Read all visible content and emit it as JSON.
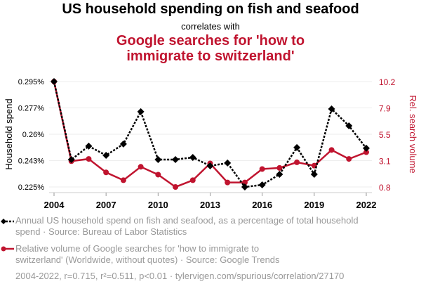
{
  "header": {
    "title": "US household spending on fish and seafood",
    "subtitle": "correlates with",
    "title2_line1": "Google searches for 'how to",
    "title2_line2": "immigrate to switzerland'"
  },
  "colors": {
    "series1": "#000000",
    "series2": "#c0142f",
    "grid": "#eeeeee",
    "legend_text": "#999999"
  },
  "chart_data": {
    "type": "line",
    "title": "US household spending on fish and seafood correlates with Google searches for 'how to immigrate to switzerland'",
    "x": [
      2004,
      2005,
      2006,
      2007,
      2008,
      2009,
      2010,
      2011,
      2012,
      2013,
      2014,
      2015,
      2016,
      2017,
      2018,
      2019,
      2020,
      2021,
      2022
    ],
    "xticks": [
      "2004",
      "2007",
      "2010",
      "2013",
      "2016",
      "2019",
      "2022"
    ],
    "xtick_values": [
      2004,
      2007,
      2010,
      2013,
      2016,
      2019,
      2022
    ],
    "ylabel": "Household spend",
    "yticks": [
      "0.225%",
      "0.243%",
      "0.26%",
      "0.277%",
      "0.295%"
    ],
    "ylim": [
      0.225,
      0.295
    ],
    "y2label": "Rel. search volume",
    "y2ticks": [
      "0.8",
      "3.1",
      "5.5",
      "7.9",
      "10.2"
    ],
    "y2lim": [
      0.8,
      10.2
    ],
    "grid": true,
    "legend_position": "bottom",
    "series": [
      {
        "name": "Annual US household spend on fish and seafood, as a percentage of total household spend · Source: Bureau of Labor Statistics",
        "axis": "left",
        "style": "dotted-diamond",
        "values": [
          0.295,
          0.2432,
          0.2521,
          0.246,
          0.2535,
          0.275,
          0.2432,
          0.2432,
          0.2446,
          0.239,
          0.2409,
          0.225,
          0.2264,
          0.2334,
          0.2512,
          0.2334,
          0.2768,
          0.2656,
          0.2507
        ]
      },
      {
        "name": "Relative volume of Google searches for 'how to immigrate to switzerland' (Worldwide, without quotes) · Source: Google Trends",
        "axis": "right",
        "style": "solid-circle",
        "values": [
          10.2,
          3.1,
          3.3,
          2.1,
          1.4,
          2.6,
          1.9,
          0.8,
          1.4,
          2.9,
          1.2,
          1.2,
          2.4,
          2.5,
          3.0,
          2.7,
          4.1,
          3.3,
          3.9
        ]
      }
    ]
  },
  "legend": {
    "item1_line1": "Annual US household spend on fish and seafood, as a percentage of total household",
    "item1_line2": "spend · Source: Bureau of Labor Statistics",
    "item2_line1": "Relative volume of Google searches for 'how to immigrate to",
    "item2_line2": "switzerland' (Worldwide, without quotes) · Source: Google Trends"
  },
  "footer": "2004-2022, r=0.715, r²=0.511, p<0.01 · tylervigen.com/spurious/correlation/27170"
}
